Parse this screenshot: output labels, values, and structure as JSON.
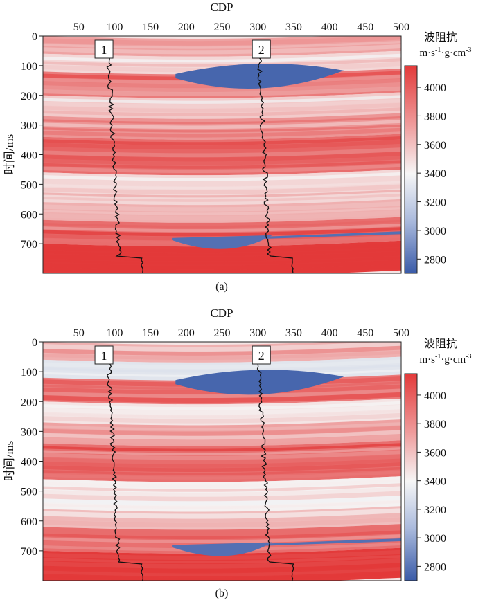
{
  "figure": {
    "colorbar_title": "波阻抗",
    "colorbar_unit_base": "m·s",
    "colorbar_unit_exp1": "-1",
    "colorbar_unit_mid": "·g·cm",
    "colorbar_unit_exp2": "-3",
    "colors": {
      "low": "#3a5ba8",
      "mid": "#f6f6f6",
      "high": "#e33a3a",
      "well_log": "#111111"
    }
  },
  "chart_data": [
    {
      "type": "heatmap",
      "panel_label": "(a)",
      "title": "",
      "xlabel": "CDP",
      "ylabel": "时间/ms",
      "xlim": [
        0,
        500
      ],
      "ylim": [
        800,
        0
      ],
      "x_ticks": [
        50,
        100,
        150,
        200,
        250,
        300,
        350,
        400,
        450,
        500
      ],
      "y_ticks": [
        0,
        100,
        200,
        300,
        400,
        500,
        600,
        700
      ],
      "colorbar": {
        "label": "波阻抗 m·s-1·g·cm-3",
        "range": [
          2700,
          4150
        ],
        "ticks": [
          2800,
          3000,
          3200,
          3400,
          3600,
          3800,
          4000
        ]
      },
      "layers": [
        {
          "top_ms": 0,
          "bottom_ms": 60,
          "impedance": 3750
        },
        {
          "top_ms": 60,
          "bottom_ms": 120,
          "impedance": 3550
        },
        {
          "top_ms": 120,
          "bottom_ms": 200,
          "impedance": 3900
        },
        {
          "top_ms": 200,
          "bottom_ms": 270,
          "impedance": 3600
        },
        {
          "top_ms": 270,
          "bottom_ms": 340,
          "impedance": 3800
        },
        {
          "top_ms": 340,
          "bottom_ms": 460,
          "impedance": 3950
        },
        {
          "top_ms": 460,
          "bottom_ms": 560,
          "impedance": 3550
        },
        {
          "top_ms": 560,
          "bottom_ms": 620,
          "impedance": 3700
        },
        {
          "top_ms": 620,
          "bottom_ms": 700,
          "impedance": 3950
        },
        {
          "top_ms": 700,
          "bottom_ms": 800,
          "impedance": 4150
        }
      ],
      "low_impedance_bodies": [
        {
          "name": "upper lens",
          "cdp_range": [
            185,
            420
          ],
          "center_ms": 135,
          "impedance": 2750
        },
        {
          "name": "lower lens",
          "cdp_range": [
            180,
            320
          ],
          "center_ms": 690,
          "impedance": 2800
        },
        {
          "name": "thin bed",
          "cdp_range": [
            300,
            500
          ],
          "center_ms": 670,
          "impedance": 2800
        }
      ],
      "wells": [
        {
          "label": "1",
          "cdp": 90
        },
        {
          "label": "2",
          "cdp": 300
        }
      ]
    },
    {
      "type": "heatmap",
      "panel_label": "(b)",
      "title": "",
      "xlabel": "CDP",
      "ylabel": "时间/ms",
      "xlim": [
        0,
        500
      ],
      "ylim": [
        800,
        0
      ],
      "x_ticks": [
        50,
        100,
        150,
        200,
        250,
        300,
        350,
        400,
        450,
        500
      ],
      "y_ticks": [
        0,
        100,
        200,
        300,
        400,
        500,
        600,
        700
      ],
      "colorbar": {
        "label": "波阻抗 m·s-1·g·cm-3",
        "range": [
          2700,
          4150
        ],
        "ticks": [
          2800,
          3000,
          3200,
          3400,
          3600,
          3800,
          4000
        ]
      },
      "layers": [
        {
          "top_ms": 0,
          "bottom_ms": 60,
          "impedance": 3700
        },
        {
          "top_ms": 60,
          "bottom_ms": 120,
          "impedance": 3350
        },
        {
          "top_ms": 120,
          "bottom_ms": 200,
          "impedance": 3900
        },
        {
          "top_ms": 200,
          "bottom_ms": 270,
          "impedance": 3500
        },
        {
          "top_ms": 270,
          "bottom_ms": 340,
          "impedance": 3750
        },
        {
          "top_ms": 340,
          "bottom_ms": 460,
          "impedance": 3950
        },
        {
          "top_ms": 460,
          "bottom_ms": 560,
          "impedance": 3450
        },
        {
          "top_ms": 560,
          "bottom_ms": 620,
          "impedance": 3650
        },
        {
          "top_ms": 620,
          "bottom_ms": 700,
          "impedance": 3950
        },
        {
          "top_ms": 700,
          "bottom_ms": 800,
          "impedance": 4150
        }
      ],
      "low_impedance_bodies": [
        {
          "name": "upper lens",
          "cdp_range": [
            185,
            420
          ],
          "center_ms": 135,
          "impedance": 2750
        },
        {
          "name": "lower lens",
          "cdp_range": [
            180,
            320
          ],
          "center_ms": 690,
          "impedance": 2800
        },
        {
          "name": "thin bed",
          "cdp_range": [
            300,
            500
          ],
          "center_ms": 670,
          "impedance": 2800
        }
      ],
      "wells": [
        {
          "label": "1",
          "cdp": 90
        },
        {
          "label": "2",
          "cdp": 300
        }
      ]
    }
  ]
}
